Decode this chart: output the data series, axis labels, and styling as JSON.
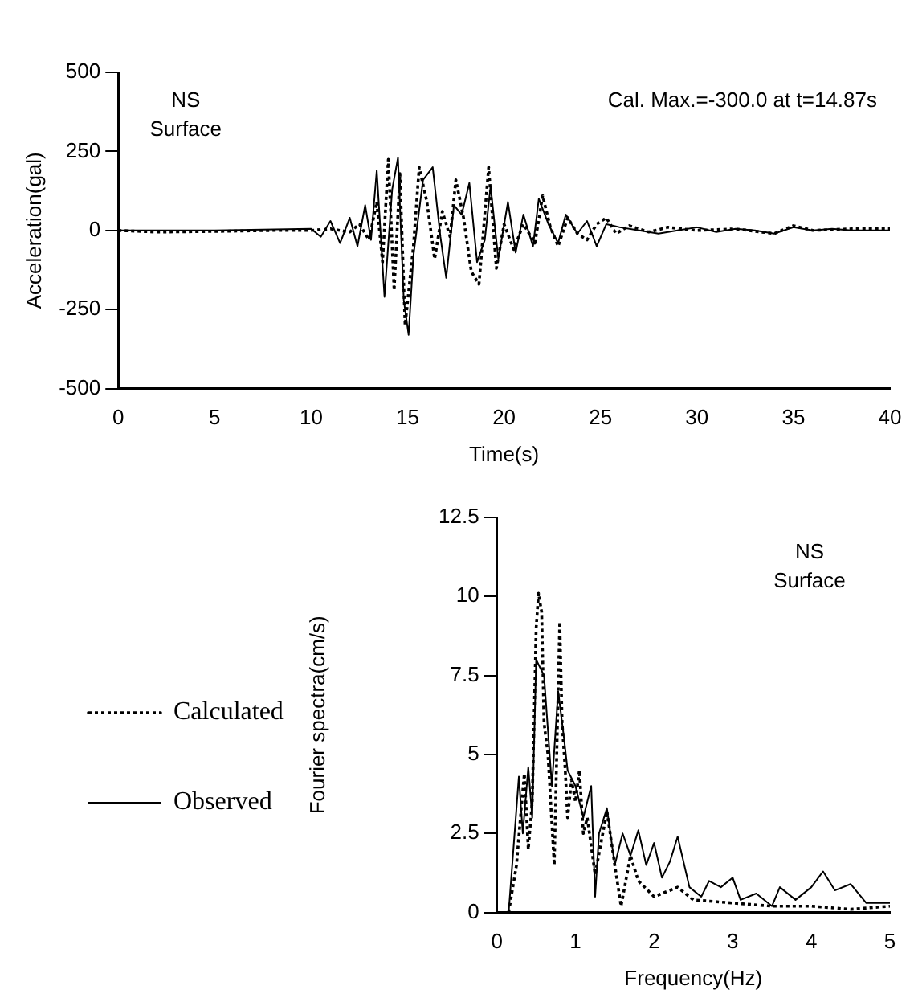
{
  "chart_data": [
    {
      "type": "line",
      "xlabel": "Time(s)",
      "ylabel": "Acceleration(gal)",
      "xlim": [
        0,
        40
      ],
      "xticks": [
        0,
        5,
        10,
        15,
        20,
        25,
        30,
        35,
        40
      ],
      "ylim": [
        -500,
        500
      ],
      "yticks": [
        500,
        250,
        0,
        -250,
        -500
      ],
      "grid": false,
      "legend": false,
      "marker": "none",
      "annotations": [
        "NS",
        "Surface",
        "Cal. Max.=-300.0 at t=14.87s"
      ],
      "series": [
        {
          "color": "#000000",
          "line_style": "dotted",
          "x": [
            0,
            2,
            5,
            8,
            10,
            11,
            12,
            12.5,
            13,
            13.4,
            13.7,
            14,
            14.3,
            14.6,
            14.87,
            15.3,
            15.6,
            16,
            16.4,
            16.8,
            17.2,
            17.5,
            17.9,
            18.3,
            18.7,
            19.2,
            19.6,
            20,
            20.5,
            21,
            21.6,
            22,
            22.4,
            22.8,
            23.3,
            23.8,
            24.3,
            24.8,
            25.3,
            25.8,
            26.5,
            27.5,
            28.5,
            30,
            32,
            34,
            35,
            36,
            38,
            40
          ],
          "values": [
            0,
            -5,
            -3,
            0,
            0,
            5,
            -5,
            20,
            -30,
            90,
            -100,
            225,
            -190,
            180,
            -300,
            -50,
            200,
            90,
            -90,
            60,
            -20,
            160,
            40,
            -130,
            -170,
            200,
            -120,
            20,
            -60,
            20,
            -40,
            110,
            10,
            -50,
            40,
            -10,
            -30,
            20,
            40,
            -10,
            15,
            -5,
            10,
            0,
            5,
            -10,
            15,
            0,
            5,
            5
          ]
        },
        {
          "color": "#000000",
          "line_style": "solid",
          "x": [
            0,
            5,
            10,
            10.5,
            11,
            11.5,
            12,
            12.4,
            12.8,
            13.1,
            13.4,
            13.8,
            14.2,
            14.5,
            14.8,
            15.05,
            15.3,
            15.8,
            16.3,
            16.7,
            17,
            17.4,
            17.8,
            18.2,
            18.6,
            19,
            19.3,
            19.7,
            20.2,
            20.6,
            21,
            21.5,
            21.8,
            22.3,
            22.8,
            23.2,
            23.8,
            24.3,
            24.8,
            25.3,
            26,
            27,
            28,
            29,
            30,
            31,
            32,
            33,
            34,
            35,
            36,
            37,
            38,
            40
          ],
          "values": [
            0,
            0,
            5,
            -20,
            30,
            -40,
            40,
            -50,
            80,
            -30,
            190,
            -210,
            130,
            230,
            -220,
            -330,
            -80,
            160,
            200,
            -20,
            -150,
            80,
            50,
            150,
            -100,
            -30,
            140,
            -90,
            90,
            -70,
            50,
            -50,
            100,
            20,
            -40,
            50,
            -10,
            30,
            -50,
            20,
            10,
            0,
            -10,
            0,
            10,
            -5,
            5,
            0,
            -10,
            10,
            0,
            5,
            0,
            0
          ]
        }
      ]
    },
    {
      "type": "line",
      "xlabel": "Frequency(Hz)",
      "ylabel": "Fourier spectra(cm/s)",
      "xlim": [
        0,
        5
      ],
      "xticks": [
        0,
        1,
        2,
        3,
        4,
        5
      ],
      "ylim": [
        0,
        12.5
      ],
      "yticks": [
        0,
        2.5,
        5,
        7.5,
        10,
        12.5
      ],
      "grid": false,
      "legend": "left",
      "marker": "none",
      "annotations": [
        "NS",
        "Surface"
      ],
      "series": [
        {
          "name": "Calculated",
          "color": "#000000",
          "line_style": "dotted",
          "x": [
            0.15,
            0.25,
            0.3,
            0.35,
            0.4,
            0.45,
            0.5,
            0.53,
            0.57,
            0.6,
            0.65,
            0.73,
            0.8,
            0.83,
            0.87,
            0.9,
            0.95,
            1,
            1.05,
            1.1,
            1.15,
            1.25,
            1.4,
            1.5,
            1.58,
            1.7,
            1.8,
            2,
            2.3,
            2.5,
            3,
            3.5,
            4,
            4.5,
            5
          ],
          "values": [
            0,
            1.5,
            3,
            4.4,
            2,
            3.5,
            9,
            10.1,
            9.5,
            6,
            5,
            1.5,
            9.2,
            6,
            4.5,
            3,
            4.2,
            3.5,
            4.5,
            2.5,
            3,
            1.2,
            3.2,
            1.5,
            0.2,
            1.8,
            1,
            0.5,
            0.8,
            0.4,
            0.3,
            0.2,
            0.2,
            0.1,
            0.2
          ]
        },
        {
          "name": "Observed",
          "color": "#000000",
          "line_style": "solid",
          "x": [
            0.15,
            0.28,
            0.33,
            0.4,
            0.45,
            0.5,
            0.6,
            0.7,
            0.78,
            0.85,
            0.9,
            1,
            1.1,
            1.2,
            1.25,
            1.3,
            1.4,
            1.5,
            1.6,
            1.7,
            1.8,
            1.9,
            2,
            2.1,
            2.2,
            2.3,
            2.45,
            2.6,
            2.7,
            2.85,
            3,
            3.1,
            3.3,
            3.5,
            3.6,
            3.8,
            4,
            4.15,
            4.3,
            4.5,
            4.7,
            5
          ],
          "values": [
            0,
            4.3,
            2.5,
            4.6,
            3,
            8,
            7.5,
            4,
            7,
            5.6,
            4.5,
            4,
            3,
            4,
            0.5,
            2.5,
            3.3,
            1.5,
            2.5,
            1.8,
            2.6,
            1.5,
            2.2,
            1.1,
            1.6,
            2.4,
            0.8,
            0.5,
            1,
            0.8,
            1.1,
            0.4,
            0.6,
            0.2,
            0.8,
            0.4,
            0.8,
            1.3,
            0.7,
            0.9,
            0.3,
            0.3
          ]
        }
      ]
    }
  ]
}
